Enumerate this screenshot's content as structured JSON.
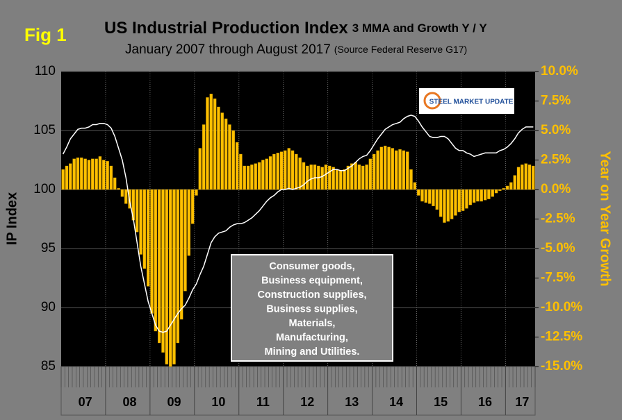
{
  "chart_data": {
    "type": "bar",
    "fig_label": "Fig 1",
    "title": "US Industrial Production Index",
    "title_suffix": "3 MMA and Growth Y / Y",
    "subtitle": "January 2007 through August 2017",
    "subtitle_suffix": "(Source Federal Reserve G17)",
    "y_label": "IP Index",
    "y2_label": "Year on Year Growth",
    "logo": "STEEL MARKET UPDATE",
    "annotation": [
      "Consumer goods,",
      "Business equipment,",
      "Construction supplies,",
      "Business supplies,",
      "Materials,",
      "Manufacturing,",
      "Mining and Utilities."
    ],
    "categories": [
      null,
      null,
      null,
      null,
      null,
      null,
      "07",
      null,
      null,
      null,
      null,
      null,
      null,
      null,
      null,
      null,
      null,
      null,
      "08",
      null,
      null,
      null,
      null,
      null,
      null,
      null,
      null,
      null,
      null,
      null,
      "09",
      null,
      null,
      null,
      null,
      null,
      null,
      null,
      null,
      null,
      null,
      null,
      "10",
      null,
      null,
      null,
      null,
      null,
      null,
      null,
      null,
      null,
      null,
      null,
      "11",
      null,
      null,
      null,
      null,
      null,
      null,
      null,
      null,
      null,
      null,
      null,
      "12",
      null,
      null,
      null,
      null,
      null,
      null,
      null,
      null,
      null,
      null,
      null,
      "13",
      null,
      null,
      null,
      null,
      null,
      null,
      null,
      null,
      null,
      null,
      null,
      "14",
      null,
      null,
      null,
      null,
      null,
      null,
      null,
      null,
      null,
      null,
      null,
      "15",
      null,
      null,
      null,
      null,
      null,
      null,
      null,
      null,
      null,
      null,
      null,
      "16",
      null,
      null,
      null,
      null,
      null,
      null,
      null,
      null,
      null,
      "17",
      null,
      null,
      null
    ],
    "series": [
      {
        "type": "bar",
        "axis": "y2",
        "color": "#ffc000",
        "values": [
          1.7,
          2.0,
          2.2,
          2.6,
          2.7,
          2.7,
          2.6,
          2.5,
          2.6,
          2.6,
          2.8,
          2.5,
          2.4,
          2.0,
          1.0,
          0.1,
          -0.6,
          -1.2,
          -1.6,
          -2.6,
          -3.6,
          -5.5,
          -6.7,
          -8.2,
          -10.5,
          -12.0,
          -13.0,
          -13.8,
          -14.8,
          -15,
          -14.8,
          -13.0,
          -11.0,
          -8.6,
          -5.6,
          -2.9,
          -0.5,
          3.5,
          5.5,
          7.8,
          8.1,
          7.7,
          7.0,
          6.5,
          6.0,
          5.5,
          5.0,
          4.0,
          3.0,
          2.0,
          2.0,
          2.1,
          2.2,
          2.3,
          2.5,
          2.6,
          2.8,
          3.0,
          3.1,
          3.2,
          3.3,
          3.5,
          3.3,
          3.0,
          2.7,
          2.3,
          2.0,
          2.1,
          2.1,
          2.0,
          1.9,
          2.1,
          2.0,
          1.9,
          1.7,
          1.6,
          1.7,
          2.0,
          2.2,
          2.3,
          2.1,
          2.0,
          2.1,
          2.6,
          3.0,
          3.3,
          3.6,
          3.7,
          3.6,
          3.5,
          3.3,
          3.4,
          3.3,
          3.2,
          1.7,
          0.6,
          -0.5,
          -1.0,
          -1.1,
          -1.2,
          -1.4,
          -1.7,
          -2.3,
          -2.8,
          -2.7,
          -2.5,
          -2.2,
          -1.9,
          -1.8,
          -1.6,
          -1.3,
          -1.1,
          -1.0,
          -1.0,
          -0.9,
          -0.8,
          -0.6,
          -0.3,
          -0.1,
          0.1,
          0.3,
          0.6,
          1.2,
          1.9,
          2.1,
          2.2,
          2.1,
          2.0
        ]
      },
      {
        "type": "line",
        "axis": "y",
        "color": "#ffffff",
        "values": [
          103.0,
          103.6,
          104.3,
          104.7,
          105.1,
          105.2,
          105.2,
          105.3,
          105.5,
          105.5,
          105.6,
          105.6,
          105.5,
          105.2,
          104.5,
          103.5,
          102.5,
          101.0,
          99.0,
          97.5,
          95.5,
          93.5,
          92.0,
          90.5,
          89.5,
          88.5,
          88.0,
          87.9,
          88.0,
          88.5,
          89.0,
          89.5,
          89.9,
          90.2,
          90.8,
          91.5,
          92.0,
          92.8,
          93.5,
          94.5,
          95.5,
          96.0,
          96.3,
          96.4,
          96.5,
          96.8,
          97.0,
          97.1,
          97.1,
          97.2,
          97.4,
          97.6,
          97.9,
          98.2,
          98.6,
          99.0,
          99.3,
          99.5,
          99.8,
          100.0,
          100.0,
          100.1,
          100.0,
          100.1,
          100.2,
          100.4,
          100.7,
          100.9,
          101.0,
          101.0,
          101.1,
          101.3,
          101.5,
          101.7,
          101.7,
          101.6,
          101.6,
          101.8,
          102.0,
          102.3,
          102.6,
          102.8,
          102.9,
          103.3,
          103.8,
          104.3,
          104.7,
          105.1,
          105.3,
          105.5,
          105.6,
          105.7,
          106.0,
          106.2,
          106.3,
          106.2,
          105.8,
          105.3,
          104.9,
          104.5,
          104.4,
          104.4,
          104.5,
          104.5,
          104.3,
          103.9,
          103.5,
          103.3,
          103.3,
          103.1,
          103.0,
          102.8,
          102.9,
          103.0,
          103.1,
          103.1,
          103.1,
          103.1,
          103.3,
          103.4,
          103.6,
          103.9,
          104.3,
          104.8,
          105.1,
          105.3,
          105.3,
          105.3
        ]
      }
    ],
    "ylim": [
      85,
      110
    ],
    "yticks": [
      85,
      90,
      95,
      100,
      105,
      110
    ],
    "y2lim": [
      -15,
      10
    ],
    "y2ticks": [
      {
        "value": -15,
        "label": "-15.0%"
      },
      {
        "value": -12.5,
        "label": "-12.5%"
      },
      {
        "value": -10,
        "label": "-10.0%"
      },
      {
        "value": -7.5,
        "label": "-7.5%"
      },
      {
        "value": -5,
        "label": "-5.0%"
      },
      {
        "value": -2.5,
        "label": "-2.5%"
      },
      {
        "value": 0,
        "label": "0.0%"
      },
      {
        "value": 2.5,
        "label": "2.5%"
      },
      {
        "value": 5,
        "label": "5.0%"
      },
      {
        "value": 7.5,
        "label": "7.5%"
      },
      {
        "value": 10,
        "label": "10.0%"
      }
    ],
    "grid": true
  }
}
